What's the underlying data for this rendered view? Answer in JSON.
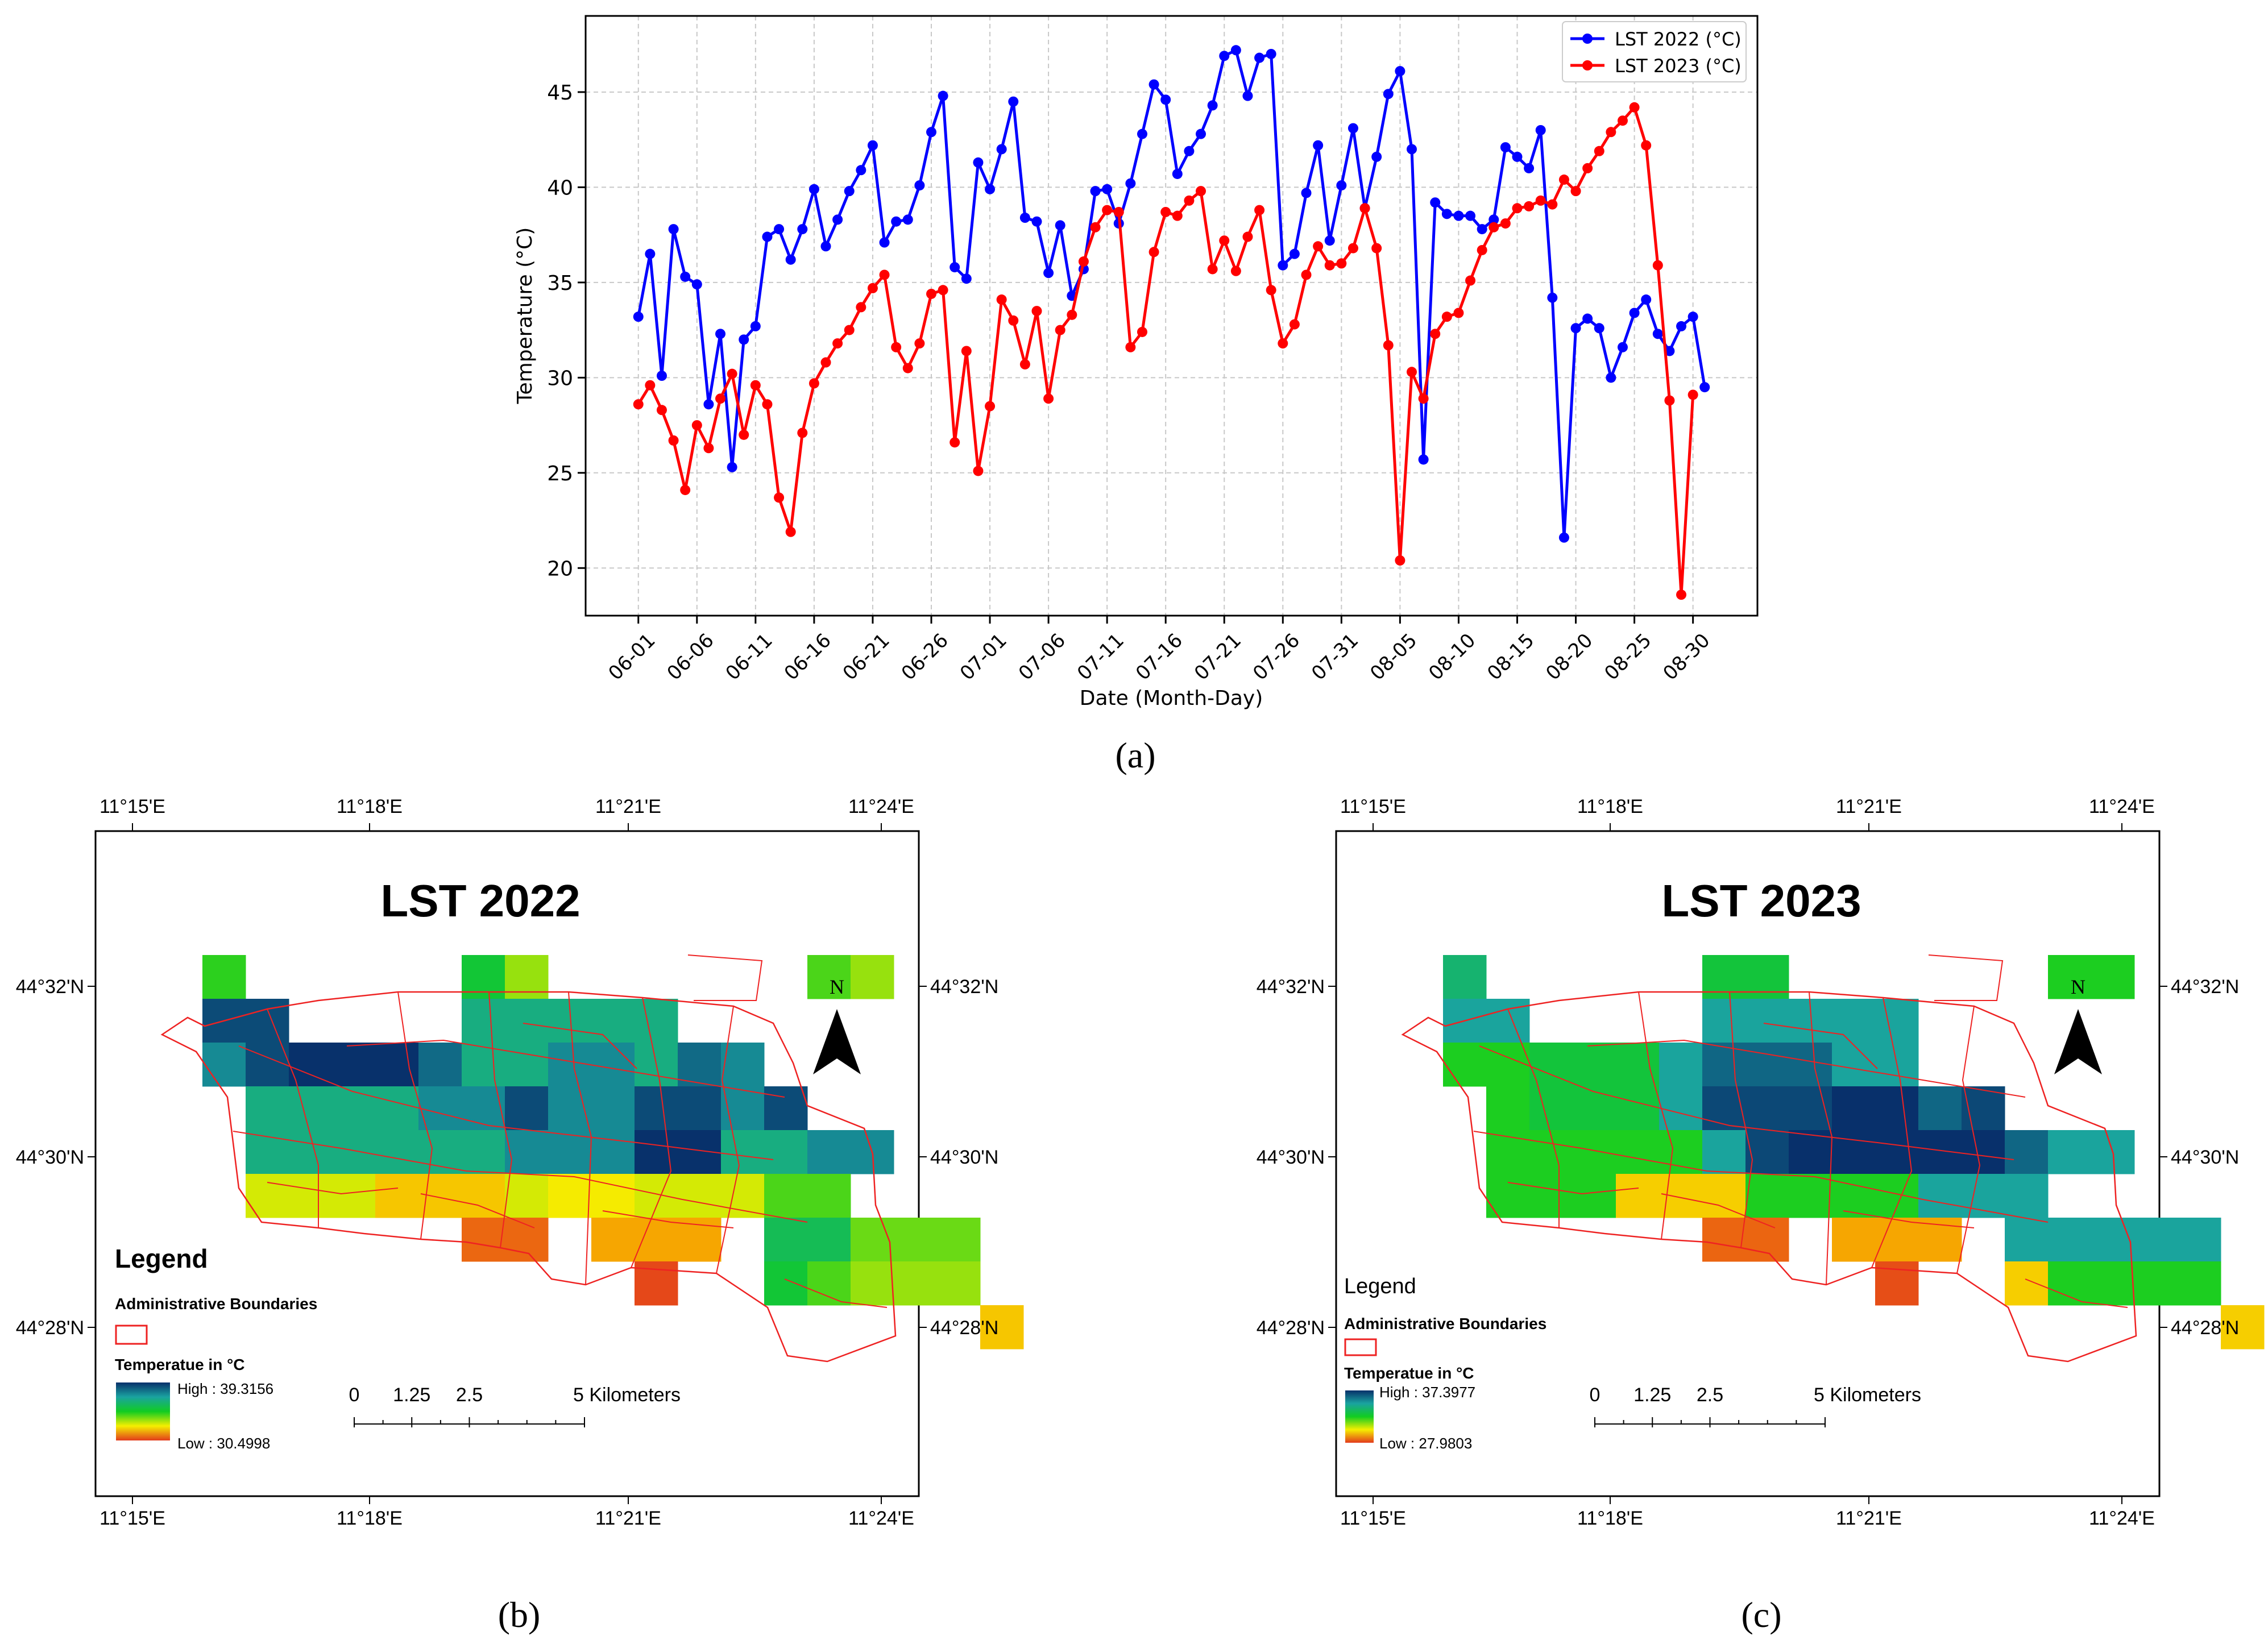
{
  "chart_data": [
    {
      "id": "a",
      "type": "line",
      "caption": "(a)",
      "title": "",
      "xlabel": "Date (Month-Day)",
      "ylabel": "Temperature (°C)",
      "ylim": [
        17.5,
        49
      ],
      "yticks": [
        20,
        25,
        30,
        35,
        40,
        45
      ],
      "xtick_days": [
        0,
        5,
        10,
        15,
        20,
        25,
        30,
        35,
        40,
        45,
        50,
        55,
        60,
        65,
        70,
        75,
        80,
        85,
        90
      ],
      "xtick_labels": [
        "06-01",
        "06-06",
        "06-11",
        "06-16",
        "06-21",
        "06-26",
        "07-01",
        "07-06",
        "07-11",
        "07-16",
        "07-21",
        "07-26",
        "07-31",
        "08-05",
        "08-10",
        "08-15",
        "08-20",
        "08-25",
        "08-30"
      ],
      "grid": true,
      "legend": "top-right",
      "series": [
        {
          "name": "LST 2022 (°C)",
          "color": "#0000ff",
          "day": [
            0,
            1,
            2,
            3,
            4,
            5,
            6,
            7,
            8,
            9,
            10,
            11,
            12,
            13,
            14,
            15,
            16,
            17,
            18,
            19,
            20,
            21,
            22,
            23,
            24,
            25,
            26,
            27,
            28,
            29,
            30,
            31,
            32,
            33,
            34,
            35,
            36,
            37,
            38,
            39,
            40,
            41,
            42,
            43,
            44,
            45,
            46,
            47,
            48,
            49,
            50,
            51,
            52,
            53,
            54,
            55,
            56,
            57,
            58,
            59,
            60,
            61,
            62,
            63,
            64,
            65,
            66,
            67,
            68,
            69,
            70,
            71,
            72,
            73,
            74,
            75,
            76,
            77,
            78,
            79,
            80,
            81,
            82,
            83,
            84,
            85,
            86,
            87,
            88,
            89,
            90,
            91
          ],
          "values": [
            33.2,
            36.5,
            30.1,
            37.8,
            35.3,
            34.9,
            28.6,
            32.3,
            25.3,
            32.0,
            32.7,
            37.4,
            37.8,
            36.2,
            37.8,
            39.9,
            36.9,
            38.3,
            39.8,
            40.9,
            42.2,
            37.1,
            38.2,
            38.3,
            40.1,
            42.9,
            44.8,
            35.8,
            35.2,
            41.3,
            39.9,
            42.0,
            44.5,
            38.4,
            38.2,
            35.5,
            38.0,
            34.3,
            35.7,
            39.8,
            39.9,
            38.1,
            40.2,
            42.8,
            45.4,
            44.6,
            40.7,
            41.9,
            42.8,
            44.3,
            46.9,
            47.2,
            44.8,
            46.8,
            47.0,
            35.9,
            36.5,
            39.7,
            42.2,
            37.2,
            40.1,
            43.1,
            38.9,
            41.6,
            44.9,
            46.1,
            42.0,
            25.7,
            39.2,
            38.6,
            38.5,
            38.5,
            37.8,
            38.3,
            42.1,
            41.6,
            41.0,
            43.0,
            34.2,
            21.6,
            32.6,
            33.1,
            32.6,
            30.0,
            31.6,
            33.4,
            34.1,
            32.3,
            31.4,
            32.7,
            33.2,
            29.5
          ]
        },
        {
          "name": "LST 2023 (°C)",
          "color": "#ff0000",
          "day": [
            0,
            1,
            2,
            3,
            4,
            5,
            6,
            7,
            8,
            9,
            10,
            11,
            12,
            13,
            14,
            15,
            16,
            17,
            18,
            19,
            20,
            21,
            22,
            23,
            24,
            25,
            26,
            27,
            28,
            29,
            30,
            31,
            32,
            33,
            34,
            35,
            36,
            37,
            38,
            39,
            40,
            41,
            42,
            43,
            44,
            45,
            46,
            47,
            48,
            49,
            50,
            51,
            52,
            53,
            54,
            55,
            56,
            57,
            58,
            59,
            60,
            61,
            62,
            63,
            64,
            65,
            66,
            67,
            68,
            69,
            70,
            71,
            72,
            73,
            74,
            75,
            76,
            77,
            78,
            79,
            80,
            81,
            82,
            83,
            84,
            85,
            86,
            87,
            88,
            89,
            90
          ],
          "values": [
            28.6,
            29.6,
            28.3,
            26.7,
            24.1,
            27.5,
            26.3,
            28.9,
            30.2,
            27.0,
            29.6,
            28.6,
            23.7,
            21.9,
            27.1,
            29.7,
            30.8,
            31.8,
            32.5,
            33.7,
            34.7,
            35.4,
            31.6,
            30.5,
            31.8,
            34.4,
            34.6,
            26.6,
            31.4,
            25.1,
            28.5,
            34.1,
            33.0,
            30.7,
            33.5,
            28.9,
            32.5,
            33.3,
            36.1,
            37.9,
            38.8,
            38.7,
            31.6,
            32.4,
            36.6,
            38.7,
            38.5,
            39.3,
            39.8,
            35.7,
            37.2,
            35.6,
            37.4,
            38.8,
            34.6,
            31.8,
            32.8,
            35.4,
            36.9,
            35.9,
            36.0,
            36.8,
            38.9,
            36.8,
            31.7,
            20.4,
            30.3,
            28.9,
            32.3,
            33.2,
            33.4,
            35.1,
            36.7,
            37.9,
            38.1,
            38.9,
            39.0,
            39.3,
            39.1,
            40.4,
            39.8,
            41.0,
            41.9,
            42.9,
            43.5,
            44.2,
            42.2,
            35.9,
            28.8,
            18.6,
            29.1
          ]
        }
      ]
    },
    {
      "id": "b",
      "type": "heatmap",
      "caption": "(b)",
      "title": "LST 2022",
      "x_ticks": [
        "11°15'E",
        "11°18'E",
        "11°21'E",
        "11°24'E"
      ],
      "y_ticks": [
        "44°32'N",
        "44°30'N",
        "44°28'N"
      ],
      "north_label": "N",
      "legend_title": "Legend",
      "boundary_label": "Administrative Boundaries",
      "temp_label": "Temperatue in °C",
      "high_label": "High : 39.3156",
      "low_label": "Low : 30.4998",
      "high": 39.3156,
      "low": 30.4998,
      "scale_labels": [
        "0",
        "1.25",
        "2.5",
        "5 Kilometers"
      ],
      "scale_km": [
        0,
        1.25,
        2.5,
        5
      ],
      "rows": [
        "V.....PR......QR..",
        "BB....AAAAA.......",
        "LBCCCHAALLAHL.....",
        ".AAAALLBLLBBLB....",
        ".AAAAAALLLCCAALL..",
        ".TTTYYYTSSTTTQQ...",
        "......EE.OOO.NNUUU",
        "..........D..PQRRR",
        "..................Y"
      ],
      "cell_temps": {
        "A": 36.6,
        "B": 38.8,
        "C": 39.3,
        "H": 38.2,
        "L": 37.6,
        "P": 35.4,
        "Q": 34.7,
        "R": 34.2,
        "N": 35.9,
        "U": 34.5,
        "S": 33.5,
        "T": 33.8,
        "Y": 32.8,
        "O": 32.2,
        "E": 31.2,
        "D": 30.7
      }
    },
    {
      "id": "c",
      "type": "heatmap",
      "caption": "(c)",
      "title": "LST 2023",
      "x_ticks": [
        "11°15'E",
        "11°18'E",
        "11°21'E",
        "11°24'E"
      ],
      "y_ticks": [
        "44°32'N",
        "44°30'N",
        "44°28'N"
      ],
      "north_label": "N",
      "legend_title": "Legend",
      "boundary_label": "Administrative Boundaries",
      "temp_label": "Temperatue in °C",
      "high_label": "High : 37.3977",
      "low_label": "Low : 27.9803",
      "high": 37.3977,
      "low": 27.9803,
      "scale_labels": [
        "0",
        "1.25",
        "2.5",
        "5 Kilometers"
      ],
      "scale_km": [
        0,
        1.25,
        2.5,
        5
      ],
      "rows": [
        "V.....PP......QQ..",
        "AA....AAAAA.......",
        "QQPPPAHHHAA.......",
        ".QPPPABBBCCHB.....",
        ".QQQQQABCCCCCHAA..",
        ".QQQYYYQQQQAAA....",
        "......EE.OOO.AAAAA",
        "..........D..YQQQQ",
        "..................Y"
      ],
      "cell_temps": {
        "A": 35.0,
        "B": 36.9,
        "C": 37.4,
        "H": 36.3,
        "P": 33.3,
        "Q": 32.8,
        "V": 34.2,
        "Y": 30.6,
        "O": 29.8,
        "E": 28.7,
        "D": 28.3
      }
    }
  ]
}
